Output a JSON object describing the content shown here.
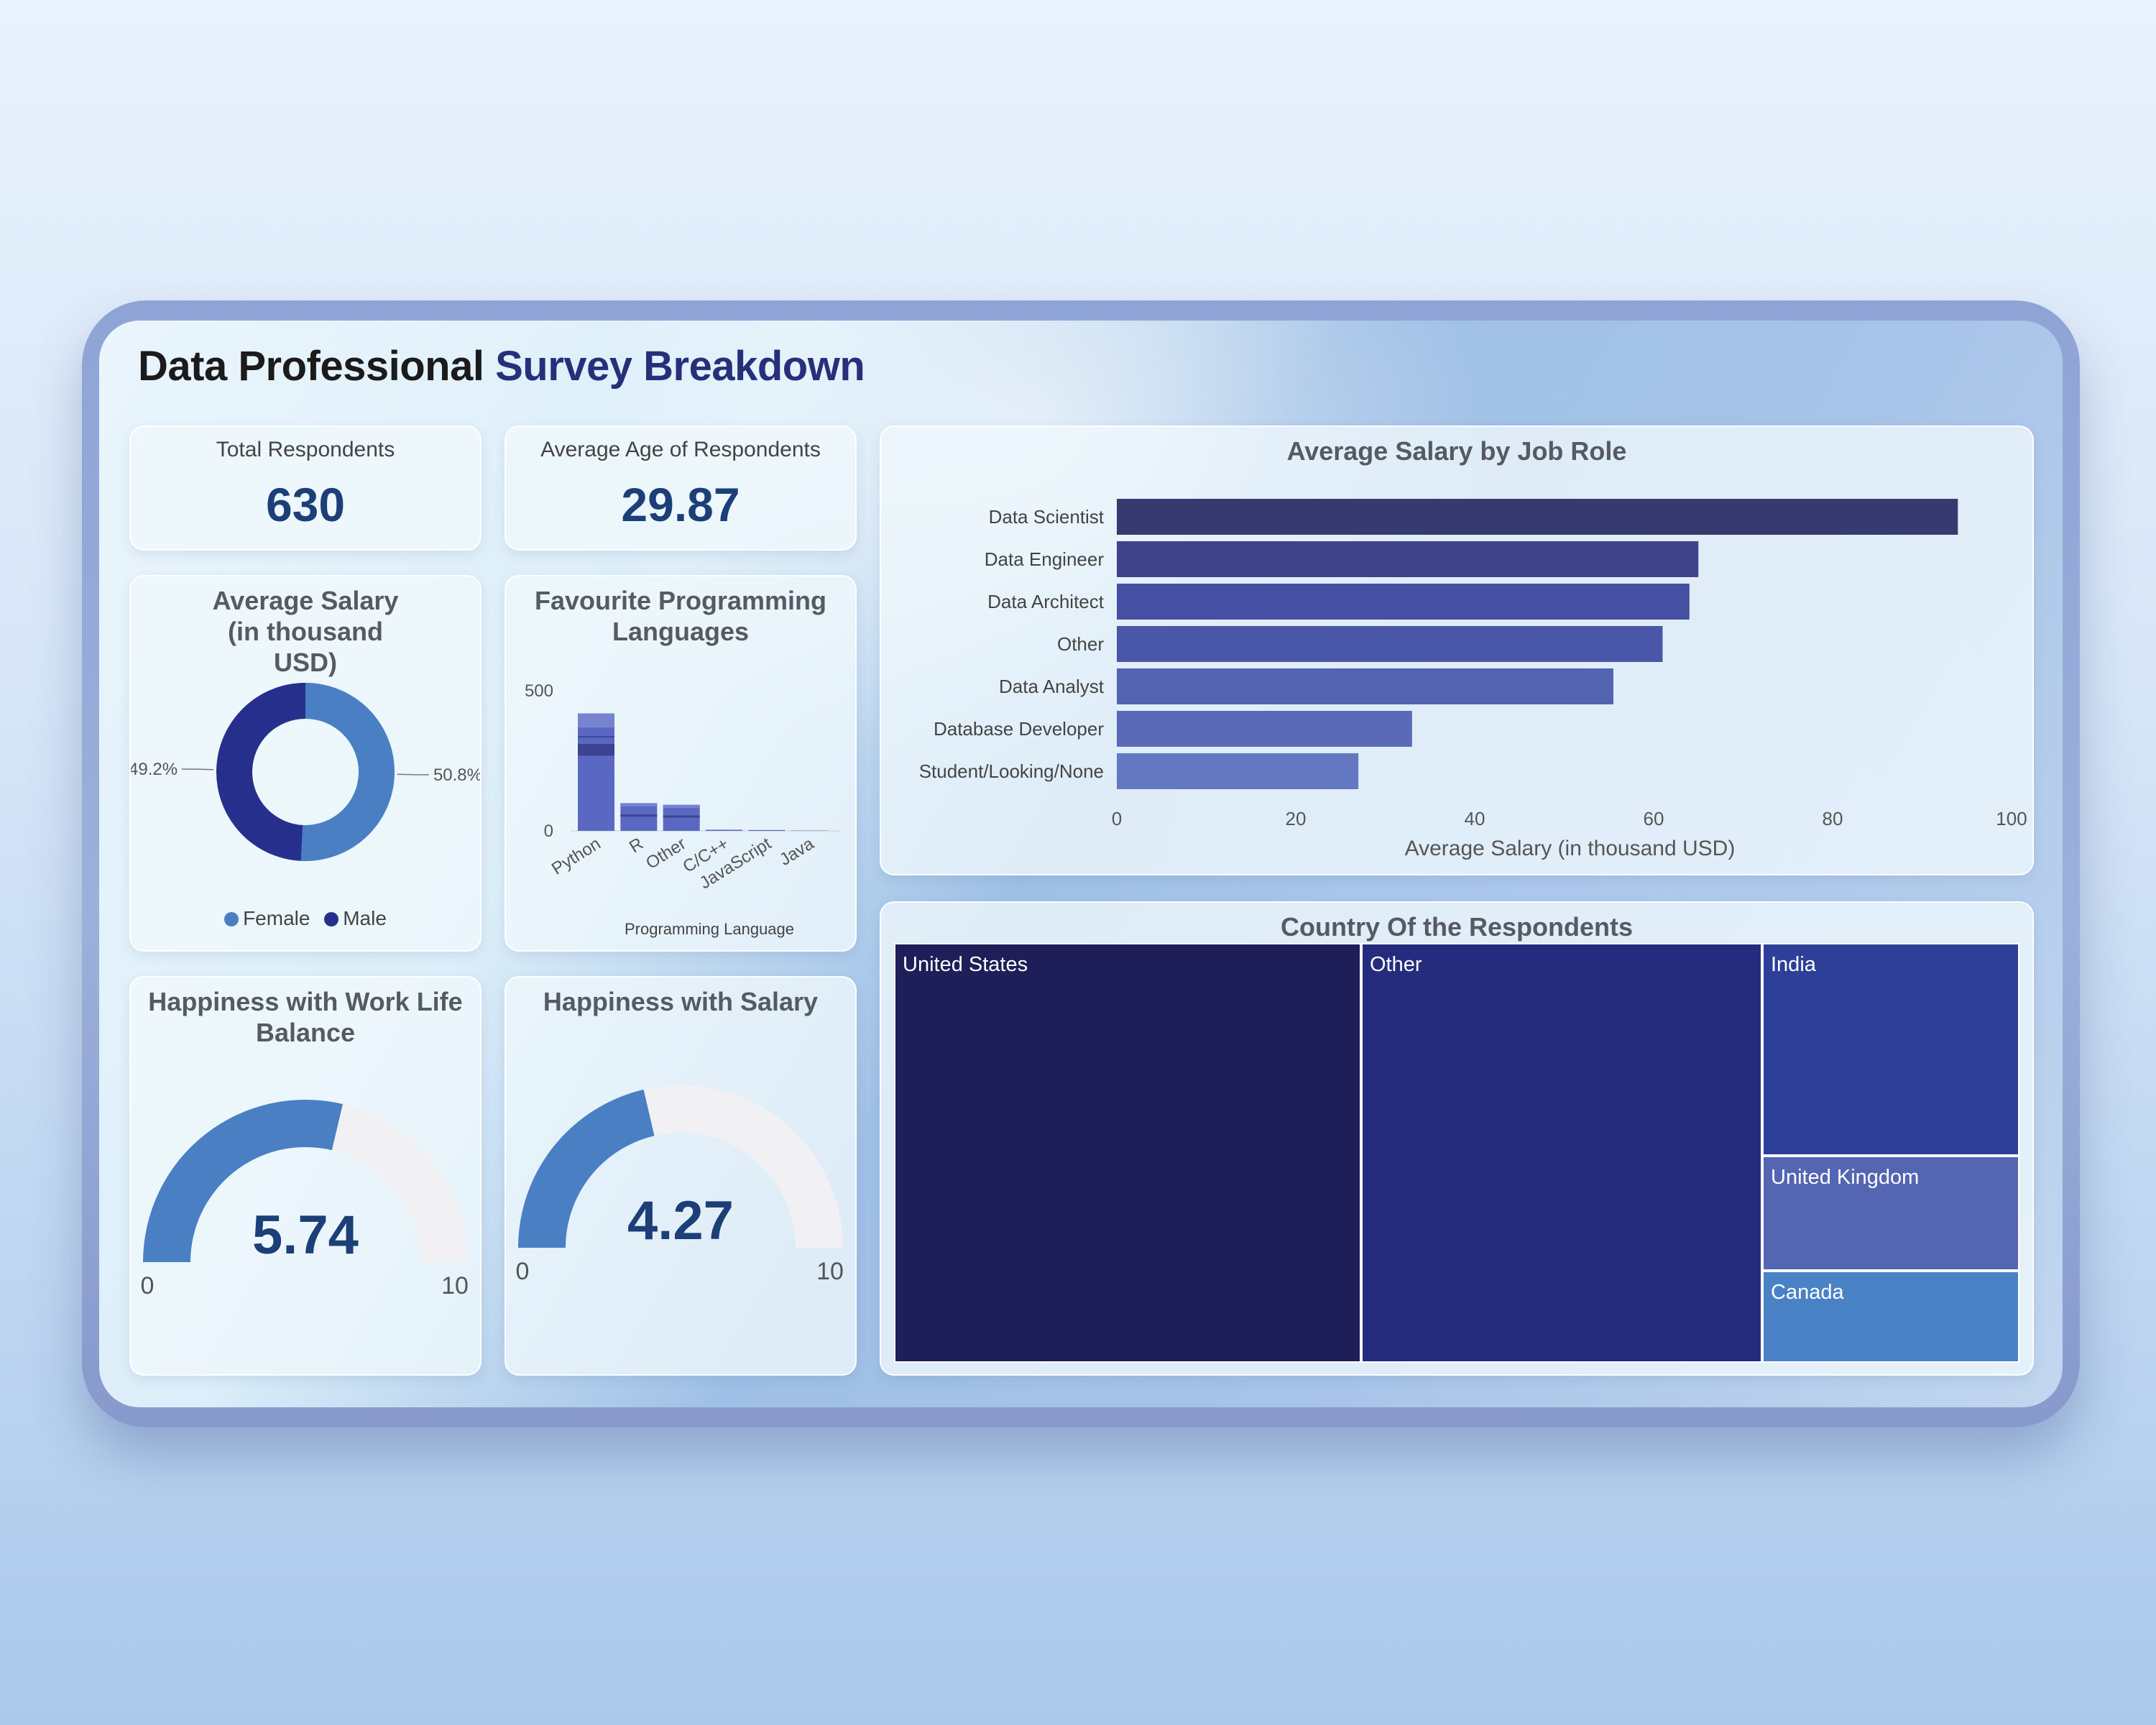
{
  "title": {
    "part1": "Data Professional",
    "part2": "Survey Breakdown"
  },
  "kpis": [
    {
      "label": "Total Respondents",
      "value": "630"
    },
    {
      "label": "Average Age of Respondents",
      "value": "29.87"
    }
  ],
  "chart_data": [
    {
      "type": "pie",
      "title": "Average Salary (in thousand USD)",
      "slices": [
        {
          "label": "Female",
          "percent": 50.8,
          "display": "50.8%",
          "color": "#4a7fc4"
        },
        {
          "label": "Male",
          "percent": 49.2,
          "display": "49.2%",
          "color": "#26308c"
        }
      ],
      "legend": "bottom",
      "donut": true
    },
    {
      "type": "bar",
      "title": "Favourite Programming Languages",
      "categories": [
        "Python",
        "R",
        "Other",
        "C/C++",
        "JavaScript",
        "Java"
      ],
      "values": [
        419,
        99,
        93,
        4,
        3,
        1
      ],
      "xlabel": "Programming Language",
      "ylabel": "",
      "yticks": [
        "0",
        "500"
      ],
      "ylim": [
        0,
        500
      ],
      "color": "#5a68c4",
      "stacked_segments": true
    },
    {
      "type": "gauge",
      "title": "Happiness with Work Life Balance",
      "value": 5.74,
      "display": "5.74",
      "min": 0,
      "max": 10,
      "min_label": "0",
      "max_label": "10",
      "fill_color": "#4a7fc4",
      "track_color": "#f1f1f3"
    },
    {
      "type": "gauge",
      "title": "Happiness with Salary",
      "value": 4.27,
      "display": "4.27",
      "min": 0,
      "max": 10,
      "min_label": "0",
      "max_label": "10",
      "fill_color": "#4a7fc4",
      "track_color": "#f1f1f3"
    },
    {
      "type": "bar",
      "orientation": "horizontal",
      "title": "Average Salary by Job Role",
      "categories": [
        "Data Scientist",
        "Data Engineer",
        "Data Architect",
        "Other",
        "Data Analyst",
        "Database Developer",
        "Student/Looking/None"
      ],
      "values": [
        94,
        65,
        64,
        61,
        55.5,
        33,
        27
      ],
      "colors": [
        "#373a6e",
        "#3f4488",
        "#4550a2",
        "#4a56a8",
        "#5363b0",
        "#5a6ab8",
        "#6478c2"
      ],
      "xlabel": "Average Salary (in thousand USD)",
      "ylabel": "",
      "xticks": [
        "0",
        "20",
        "40",
        "60",
        "80",
        "100"
      ],
      "xlim": [
        0,
        100
      ]
    },
    {
      "type": "treemap",
      "title": "Country Of the Respondents",
      "items": [
        {
          "label": "United States",
          "color": "#1e1e58"
        },
        {
          "label": "Other",
          "color": "#262c7d"
        },
        {
          "label": "India",
          "color": "#2e3f99"
        },
        {
          "label": "United Kingdom",
          "color": "#5465b2"
        },
        {
          "label": "Canada",
          "color": "#4a82c6"
        }
      ]
    }
  ]
}
